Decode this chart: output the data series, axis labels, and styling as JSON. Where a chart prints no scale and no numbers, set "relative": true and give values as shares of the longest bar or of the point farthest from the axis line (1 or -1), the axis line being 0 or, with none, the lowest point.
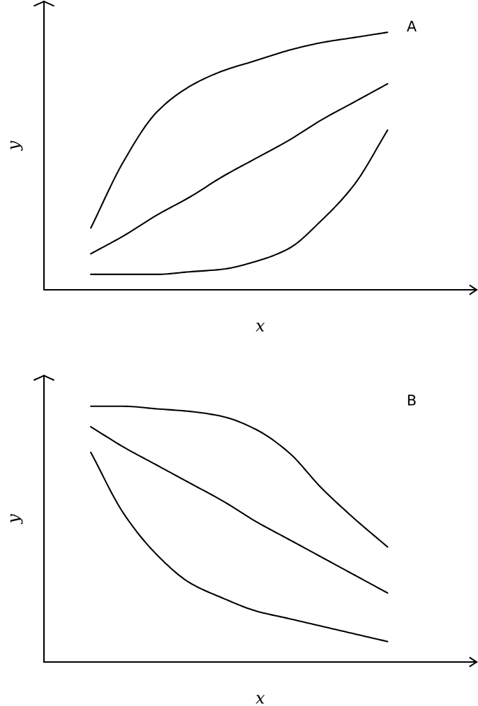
{
  "chart_data": [
    {
      "type": "line",
      "relative": true,
      "categories": [
        null,
        null,
        null,
        null,
        null,
        null,
        null,
        null,
        null,
        null
      ],
      "xlabel": "x",
      "ylabel": "y",
      "annotations": [
        "A"
      ],
      "tick_labels": false,
      "grid": false,
      "legend": false,
      "marker": "none",
      "line_style": "solid",
      "series": [
        {
          "color": "#000000",
          "values": [
            0.24,
            0.5,
            0.69,
            0.79,
            0.85,
            0.89,
            0.93,
            0.96,
            0.98,
            1.0
          ]
        },
        {
          "color": "#000000",
          "values": [
            0.14,
            0.21,
            0.29,
            0.36,
            0.44,
            0.51,
            0.58,
            0.66,
            0.73,
            0.8
          ]
        },
        {
          "color": "#000000",
          "values": [
            0.06,
            0.06,
            0.06,
            0.07,
            0.08,
            0.11,
            0.16,
            0.27,
            0.41,
            0.62
          ]
        }
      ]
    },
    {
      "type": "line",
      "relative": true,
      "categories": [
        null,
        null,
        null,
        null,
        null,
        null,
        null,
        null,
        null,
        null
      ],
      "xlabel": "x",
      "ylabel": "y",
      "annotations": [
        "B"
      ],
      "tick_labels": false,
      "grid": false,
      "legend": false,
      "marker": "none",
      "line_style": "solid",
      "series": [
        {
          "color": "#000000",
          "values": [
            1.0,
            1.0,
            0.99,
            0.98,
            0.96,
            0.91,
            0.82,
            0.68,
            0.56,
            0.45
          ]
        },
        {
          "color": "#000000",
          "values": [
            0.92,
            0.84,
            0.77,
            0.7,
            0.63,
            0.55,
            0.48,
            0.41,
            0.34,
            0.27
          ]
        },
        {
          "color": "#000000",
          "values": [
            0.82,
            0.58,
            0.42,
            0.31,
            0.25,
            0.2,
            0.17,
            0.14,
            0.11,
            0.08
          ]
        }
      ]
    }
  ]
}
